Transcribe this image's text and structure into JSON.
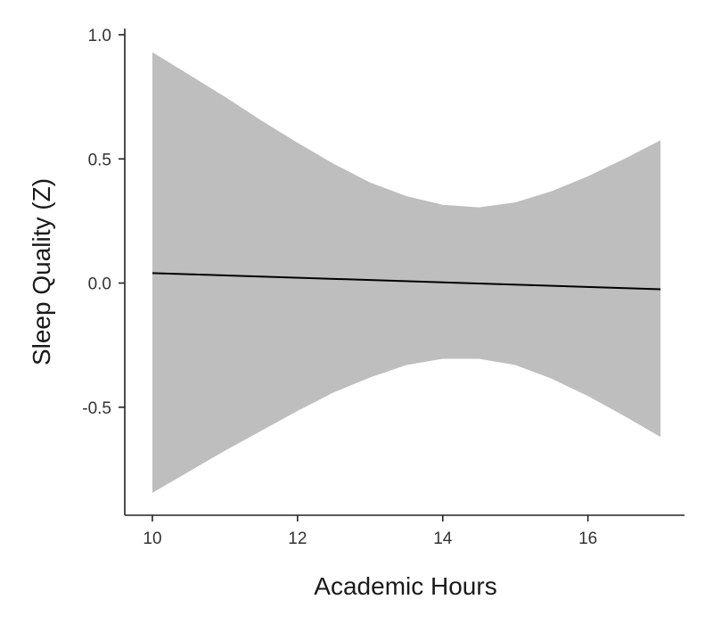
{
  "chart_data": {
    "type": "line",
    "xlabel": "Academic Hours",
    "ylabel": "Sleep Quality (Z)",
    "xlim": [
      9.62,
      17.33
    ],
    "ylim": [
      -0.935,
      1.025
    ],
    "x_ticks": [
      10,
      12,
      14,
      16
    ],
    "x_tick_labels": [
      "10",
      "12",
      "14",
      "16"
    ],
    "y_ticks": [
      1.0,
      0.5,
      0.0,
      -0.5
    ],
    "y_tick_labels": [
      "1.0",
      "0.5",
      "0.0",
      "-0.5"
    ],
    "grid": false,
    "legend": "none",
    "fit_line": {
      "color": "#000000",
      "x": [
        10,
        17
      ],
      "y": [
        0.04,
        -0.025
      ]
    },
    "confidence_band": {
      "color": "#bebebe",
      "x": [
        10,
        10.5,
        11,
        11.5,
        12,
        12.5,
        13,
        13.5,
        14,
        14.5,
        15,
        15.5,
        16,
        16.5,
        17
      ],
      "upper": [
        0.93,
        0.84,
        0.75,
        0.655,
        0.565,
        0.48,
        0.405,
        0.35,
        0.315,
        0.305,
        0.325,
        0.37,
        0.43,
        0.5,
        0.575
      ],
      "lower": [
        -0.845,
        -0.76,
        -0.675,
        -0.595,
        -0.515,
        -0.44,
        -0.38,
        -0.33,
        -0.305,
        -0.305,
        -0.33,
        -0.385,
        -0.455,
        -0.535,
        -0.62
      ]
    }
  }
}
